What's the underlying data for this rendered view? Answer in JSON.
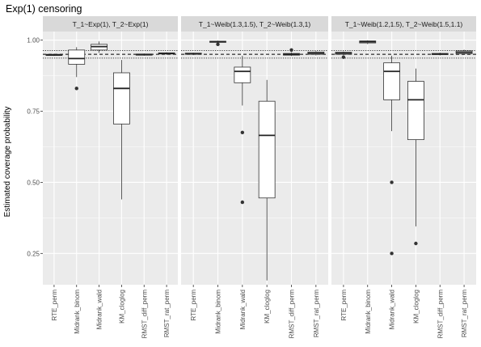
{
  "chart_data": {
    "type": "boxplot",
    "title": "Exp(1) censoring",
    "ylabel": "Estimated coverage probability",
    "xlabel": "",
    "ylim": [
      0.14,
      1.03
    ],
    "yticks": [
      0.25,
      0.5,
      0.75,
      1.0
    ],
    "ytick_labels": [
      "0.25",
      "0.50",
      "0.75",
      "1.00"
    ],
    "reference_lines": [
      {
        "y": 0.95,
        "style": "dashed"
      },
      {
        "y": 0.9365,
        "style": "dotted"
      },
      {
        "y": 0.9635,
        "style": "dotted"
      }
    ],
    "grid": true,
    "categories": [
      "RTE_perm",
      "Midrank_binom",
      "Midrank_wald",
      "KM_cloglog",
      "RMST_diff_perm",
      "RMST_rat_perm"
    ],
    "panels": [
      {
        "strip": "T_1~Exp(1), T_2~Exp(1)",
        "boxes": [
          {
            "category": "RTE_perm",
            "lower_whisker": 0.944,
            "q1": 0.946,
            "median": 0.948,
            "q3": 0.95,
            "upper_whisker": 0.952,
            "outliers": []
          },
          {
            "category": "Midrank_binom",
            "lower_whisker": 0.87,
            "q1": 0.915,
            "median": 0.935,
            "q3": 0.965,
            "upper_whisker": 0.975,
            "outliers": [
              0.83
            ]
          },
          {
            "category": "Midrank_wald",
            "lower_whisker": 0.955,
            "q1": 0.965,
            "median": 0.977,
            "q3": 0.985,
            "upper_whisker": 0.995,
            "outliers": []
          },
          {
            "category": "KM_cloglog",
            "lower_whisker": 0.44,
            "q1": 0.705,
            "median": 0.83,
            "q3": 0.885,
            "upper_whisker": 0.93,
            "outliers": []
          },
          {
            "category": "RMST_diff_perm",
            "lower_whisker": 0.945,
            "q1": 0.947,
            "median": 0.949,
            "q3": 0.951,
            "upper_whisker": 0.953,
            "outliers": []
          },
          {
            "category": "RMST_rat_perm",
            "lower_whisker": 0.948,
            "q1": 0.951,
            "median": 0.953,
            "q3": 0.955,
            "upper_whisker": 0.957,
            "outliers": []
          }
        ]
      },
      {
        "strip": "T_1~Weib(1.3,1.5), T_2~Weib(1.3,1)",
        "boxes": [
          {
            "category": "RTE_perm",
            "lower_whisker": 0.947,
            "q1": 0.95,
            "median": 0.952,
            "q3": 0.954,
            "upper_whisker": 0.956,
            "outliers": []
          },
          {
            "category": "Midrank_binom",
            "lower_whisker": 0.99,
            "q1": 0.992,
            "median": 0.994,
            "q3": 0.996,
            "upper_whisker": 0.998,
            "outliers": [
              0.985
            ]
          },
          {
            "category": "Midrank_wald",
            "lower_whisker": 0.77,
            "q1": 0.85,
            "median": 0.89,
            "q3": 0.905,
            "upper_whisker": 0.945,
            "outliers": [
              0.675,
              0.43
            ]
          },
          {
            "category": "KM_cloglog",
            "lower_whisker": 0.155,
            "q1": 0.445,
            "median": 0.665,
            "q3": 0.785,
            "upper_whisker": 0.86,
            "outliers": []
          },
          {
            "category": "RMST_diff_perm",
            "lower_whisker": 0.944,
            "q1": 0.947,
            "median": 0.95,
            "q3": 0.953,
            "upper_whisker": 0.957,
            "outliers": [
              0.965
            ]
          },
          {
            "category": "RMST_rat_perm",
            "lower_whisker": 0.946,
            "q1": 0.95,
            "median": 0.954,
            "q3": 0.958,
            "upper_whisker": 0.961,
            "outliers": []
          }
        ]
      },
      {
        "strip": "T_1~Weib(1.2,1.5), T_2~Weib(1.5,1.1)",
        "boxes": [
          {
            "category": "RTE_perm",
            "lower_whisker": 0.947,
            "q1": 0.95,
            "median": 0.954,
            "q3": 0.957,
            "upper_whisker": 0.96,
            "outliers": [
              0.94
            ]
          },
          {
            "category": "Midrank_binom",
            "lower_whisker": 0.986,
            "q1": 0.99,
            "median": 0.994,
            "q3": 0.997,
            "upper_whisker": 0.999,
            "outliers": []
          },
          {
            "category": "Midrank_wald",
            "lower_whisker": 0.68,
            "q1": 0.79,
            "median": 0.89,
            "q3": 0.92,
            "upper_whisker": 0.945,
            "outliers": [
              0.5,
              0.25
            ]
          },
          {
            "category": "KM_cloglog",
            "lower_whisker": 0.345,
            "q1": 0.65,
            "median": 0.79,
            "q3": 0.855,
            "upper_whisker": 0.9,
            "outliers": [
              0.285
            ]
          },
          {
            "category": "RMST_diff_perm",
            "lower_whisker": 0.946,
            "q1": 0.949,
            "median": 0.951,
            "q3": 0.953,
            "upper_whisker": 0.956,
            "outliers": []
          },
          {
            "category": "RMST_rat_perm",
            "lower_whisker": 0.948,
            "q1": 0.952,
            "median": 0.957,
            "q3": 0.962,
            "upper_whisker": 0.966,
            "outliers": []
          }
        ]
      }
    ]
  }
}
